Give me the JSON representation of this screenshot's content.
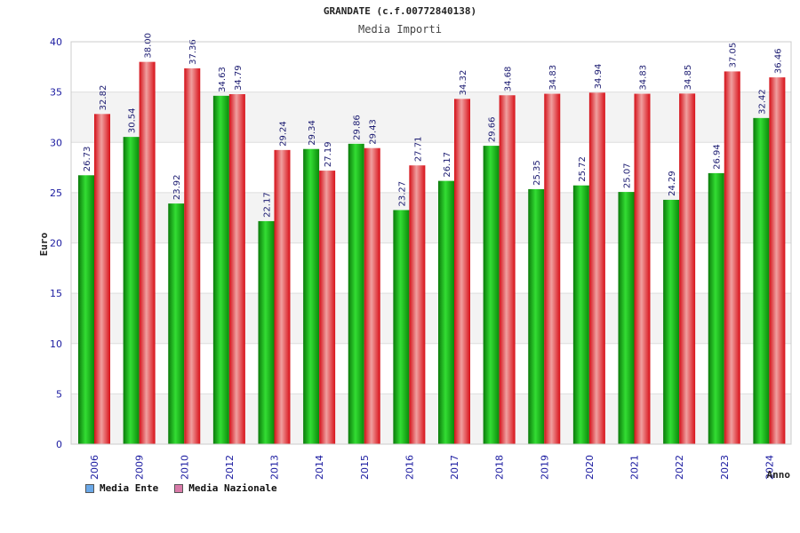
{
  "chart_data": {
    "type": "bar",
    "title": "GRANDATE (c.f.00772840138)",
    "subtitle": "Media Importi",
    "xlabel": "Anno",
    "ylabel": "Euro",
    "ylim": [
      0,
      40
    ],
    "yticks": [
      0,
      5,
      10,
      15,
      20,
      25,
      30,
      35,
      40
    ],
    "categories": [
      "2006",
      "2009",
      "2010",
      "2012",
      "2013",
      "2014",
      "2015",
      "2016",
      "2017",
      "2018",
      "2019",
      "2020",
      "2021",
      "2022",
      "2023",
      "2024"
    ],
    "series": [
      {
        "name": "Media Ente",
        "color": "#00b000",
        "legend_color": "#6aa8e8",
        "values": [
          26.73,
          30.54,
          23.92,
          34.63,
          22.17,
          29.34,
          29.86,
          23.27,
          26.17,
          29.66,
          25.35,
          25.72,
          25.07,
          24.29,
          26.94,
          32.42
        ]
      },
      {
        "name": "Media Nazionale",
        "color": "#e8101a",
        "legend_color": "#d87aa8",
        "values": [
          32.82,
          38.0,
          37.36,
          34.79,
          29.24,
          27.19,
          29.43,
          27.71,
          34.32,
          34.68,
          34.83,
          34.94,
          34.83,
          34.85,
          37.05,
          36.46
        ]
      }
    ],
    "data_labels": [
      [
        "26.73",
        "30.54",
        "23.92",
        "34.63",
        "22.17",
        "29.34",
        "29.86",
        "23.27",
        "26.17",
        "29.66",
        "25.35",
        "25.72",
        "25.07",
        "24.29",
        "26.94",
        "32.42"
      ],
      [
        "32.82",
        "38.00",
        "37.36",
        "34.79",
        "29.24",
        "27.19",
        "29.43",
        "27.71",
        "34.32",
        "34.68",
        "34.83",
        "34.94",
        "34.83",
        "34.85",
        "37.05",
        "36.46"
      ]
    ],
    "grid": true,
    "legend_position": "bottom-left"
  }
}
